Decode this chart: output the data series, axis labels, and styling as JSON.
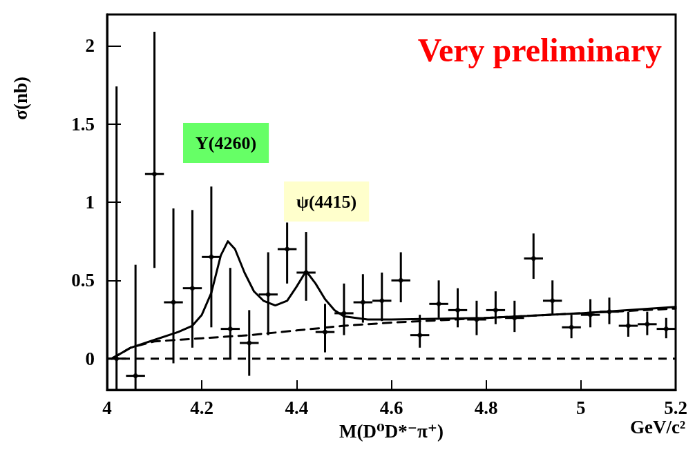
{
  "chart_data": {
    "type": "scatter",
    "xlabel": "M(D⁰D*⁻π⁺)",
    "ylabel": "σ(nb)",
    "annotations": [
      "Very preliminary",
      "Y(4260)",
      "ψ(4415)",
      "GeV/c²"
    ],
    "xlim": [
      4,
      5.2
    ],
    "xticks": [
      4,
      4.2,
      4.4,
      4.6,
      4.8,
      5,
      5.2
    ],
    "ylim": [
      -0.2,
      2.2
    ],
    "yticks": [
      0,
      0.5,
      1,
      1.5,
      2
    ],
    "grid": false,
    "ref_lines": [
      {
        "axis": "y",
        "value": 0,
        "color": "#000000",
        "line_style": "dashed"
      }
    ],
    "series": [
      {
        "color": "#000000",
        "marker": "circle",
        "x": [
          4.02,
          4.06,
          4.1,
          4.14,
          4.18,
          4.22,
          4.26,
          4.3,
          4.34,
          4.38,
          4.42,
          4.46,
          4.5,
          4.54,
          4.58,
          4.62,
          4.66,
          4.7,
          4.74,
          4.78,
          4.82,
          4.86,
          4.9,
          4.94,
          4.98,
          5.02,
          5.06,
          5.1,
          5.14,
          5.18
        ],
        "values": [
          0.0,
          -0.11,
          1.18,
          0.36,
          0.45,
          0.65,
          0.19,
          0.1,
          0.41,
          0.7,
          0.55,
          0.17,
          0.29,
          0.36,
          0.37,
          0.5,
          0.15,
          0.35,
          0.31,
          0.25,
          0.31,
          0.26,
          0.64,
          0.37,
          0.2,
          0.28,
          0.3,
          0.21,
          0.22,
          0.19
        ],
        "errors": [
          [
            -0.2,
            1.74
          ],
          [
            -0.2,
            0.6
          ],
          [
            0.58,
            2.09
          ],
          [
            -0.03,
            0.96
          ],
          [
            0.07,
            0.95
          ],
          [
            0.2,
            1.1
          ],
          [
            0.0,
            0.58
          ],
          [
            -0.11,
            0.31
          ],
          [
            0.15,
            0.68
          ],
          [
            0.48,
            0.87
          ],
          [
            0.37,
            0.81
          ],
          [
            0.04,
            0.35
          ],
          [
            0.15,
            0.48
          ],
          [
            0.23,
            0.54
          ],
          [
            0.24,
            0.55
          ],
          [
            0.36,
            0.68
          ],
          [
            0.07,
            0.28
          ],
          [
            0.26,
            0.5
          ],
          [
            0.2,
            0.45
          ],
          [
            0.15,
            0.37
          ],
          [
            0.22,
            0.43
          ],
          [
            0.17,
            0.37
          ],
          [
            0.51,
            0.8
          ],
          [
            0.28,
            0.5
          ],
          [
            0.13,
            0.28
          ],
          [
            0.2,
            0.38
          ],
          [
            0.22,
            0.39
          ],
          [
            0.14,
            0.3
          ],
          [
            0.15,
            0.3
          ],
          [
            0.13,
            0.26
          ]
        ],
        "xerrors": [
          0.02,
          0.02,
          0.02,
          0.02,
          0.02,
          0.02,
          0.02,
          0.02,
          0.02,
          0.02,
          0.02,
          0.02,
          0.02,
          0.02,
          0.02,
          0.02,
          0.02,
          0.02,
          0.02,
          0.02,
          0.02,
          0.02,
          0.02,
          0.02,
          0.02,
          0.02,
          0.02,
          0.02,
          0.02,
          0.02
        ]
      },
      {
        "type": "line",
        "color": "#000000",
        "marker": "none",
        "line_style": "solid",
        "x": [
          4.01,
          4.05,
          4.1,
          4.15,
          4.18,
          4.2,
          4.22,
          4.24,
          4.255,
          4.27,
          4.29,
          4.31,
          4.33,
          4.355,
          4.38,
          4.4,
          4.42,
          4.44,
          4.46,
          4.48,
          4.5,
          4.55,
          4.6,
          4.8,
          5.0,
          5.2
        ],
        "values": [
          0.0,
          0.07,
          0.12,
          0.17,
          0.21,
          0.28,
          0.42,
          0.66,
          0.75,
          0.7,
          0.55,
          0.43,
          0.37,
          0.34,
          0.37,
          0.46,
          0.56,
          0.48,
          0.38,
          0.31,
          0.27,
          0.25,
          0.25,
          0.26,
          0.29,
          0.33
        ]
      },
      {
        "type": "line",
        "color": "#000000",
        "marker": "none",
        "line_style": "dashed",
        "x": [
          4.01,
          4.05,
          4.1,
          4.2,
          4.3,
          4.4,
          4.5,
          4.6,
          4.8,
          5.0,
          5.2
        ],
        "values": [
          0.0,
          0.07,
          0.11,
          0.13,
          0.15,
          0.18,
          0.21,
          0.23,
          0.26,
          0.29,
          0.32
        ]
      }
    ]
  }
}
